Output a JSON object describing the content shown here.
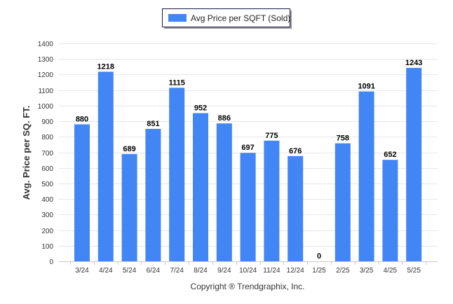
{
  "chart_data": {
    "type": "bar",
    "categories": [
      "3/24",
      "4/24",
      "5/24",
      "6/24",
      "7/24",
      "8/24",
      "9/24",
      "10/24",
      "11/24",
      "12/24",
      "1/25",
      "2/25",
      "3/25",
      "4/25",
      "5/25"
    ],
    "series": [
      {
        "name": "Avg Price per SQFT (Sold)",
        "values": [
          880,
          1218,
          689,
          851,
          1115,
          952,
          886,
          697,
          775,
          676,
          0,
          758,
          1091,
          652,
          1243
        ],
        "color": "#4285f4"
      }
    ],
    "data_labels": [
      "880",
      "1218",
      "689",
      "851",
      "1115",
      "952",
      "886",
      "697",
      "775",
      "676",
      "0",
      "758",
      "1091",
      "652",
      "1243"
    ],
    "ylabel": "Avg. Price per SQ. FT.",
    "ylim": [
      0,
      1400
    ],
    "yticks": [
      0,
      100,
      200,
      300,
      400,
      500,
      600,
      700,
      800,
      900,
      1000,
      1100,
      1200,
      1300,
      1400
    ],
    "grid": true,
    "legend_position": "top-center",
    "footer": "Copyright ® Trendgraphix, Inc."
  }
}
